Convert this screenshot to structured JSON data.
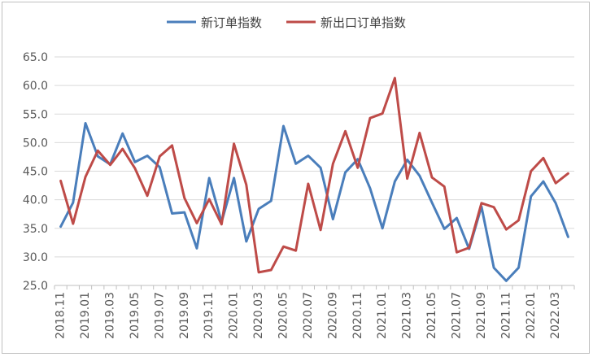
{
  "chart_data": {
    "type": "line",
    "title": "",
    "xlabel": "",
    "ylabel": "",
    "ylim": [
      25,
      65
    ],
    "yticks": [
      "25.0",
      "30.0",
      "35.0",
      "40.0",
      "45.0",
      "50.0",
      "55.0",
      "60.0",
      "65.0"
    ],
    "grid": true,
    "legend_position": "top-center",
    "x": [
      "2018.11",
      "2018.12",
      "2019.01",
      "2019.02",
      "2019.03",
      "2019.04",
      "2019.05",
      "2019.06",
      "2019.07",
      "2019.08",
      "2019.09",
      "2019.10",
      "2019.11",
      "2019.12",
      "2020.01",
      "2020.02",
      "2020.03",
      "2020.04",
      "2020.05",
      "2020.06",
      "2020.07",
      "2020.08",
      "2020.09",
      "2020.10",
      "2020.11",
      "2020.12",
      "2021.01",
      "2021.02",
      "2021.03",
      "2021.04",
      "2021.05",
      "2021.06",
      "2021.07",
      "2021.08",
      "2021.09",
      "2021.10",
      "2021.11",
      "2021.12",
      "2022.01",
      "2022.02",
      "2022.03",
      "2022.04"
    ],
    "xtick_labels": [
      "2018.11",
      "2019.01",
      "2019.03",
      "2019.05",
      "2019.07",
      "2019.09",
      "2019.11",
      "2020.01",
      "2020.03",
      "2020.05",
      "2020.07",
      "2020.09",
      "2020.11",
      "2021.01",
      "2021.03",
      "2021.05",
      "2021.07",
      "2021.09",
      "2021.11",
      "2022.01",
      "2022.03"
    ],
    "series": [
      {
        "name": "新订单指数",
        "color": "#4a7ebb",
        "values": [
          35.3,
          39.5,
          53.4,
          47.6,
          46.2,
          51.6,
          46.6,
          47.7,
          45.7,
          37.6,
          37.8,
          31.5,
          43.8,
          36.1,
          43.8,
          32.7,
          38.4,
          39.8,
          52.9,
          46.3,
          47.7,
          45.6,
          36.6,
          44.8,
          47.1,
          42.0,
          35.0,
          43.2,
          47.0,
          44.2,
          39.5,
          34.9,
          36.8,
          31.4,
          38.8,
          28.1,
          25.8,
          28.1,
          40.6,
          43.2,
          39.4,
          33.5
        ]
      },
      {
        "name": "新出口订单指数",
        "color": "#be4b48",
        "values": [
          43.3,
          35.8,
          44.0,
          48.6,
          46.1,
          48.9,
          45.5,
          40.7,
          47.6,
          49.5,
          40.3,
          35.9,
          40.1,
          35.7,
          49.8,
          42.6,
          27.3,
          27.7,
          31.8,
          31.1,
          42.8,
          34.7,
          46.3,
          52.0,
          45.6,
          54.3,
          55.1,
          61.3,
          43.7,
          51.7,
          43.9,
          42.3,
          30.8,
          31.6,
          39.4,
          38.7,
          34.8,
          36.4,
          45.0,
          47.3,
          42.9,
          44.6
        ]
      }
    ]
  }
}
